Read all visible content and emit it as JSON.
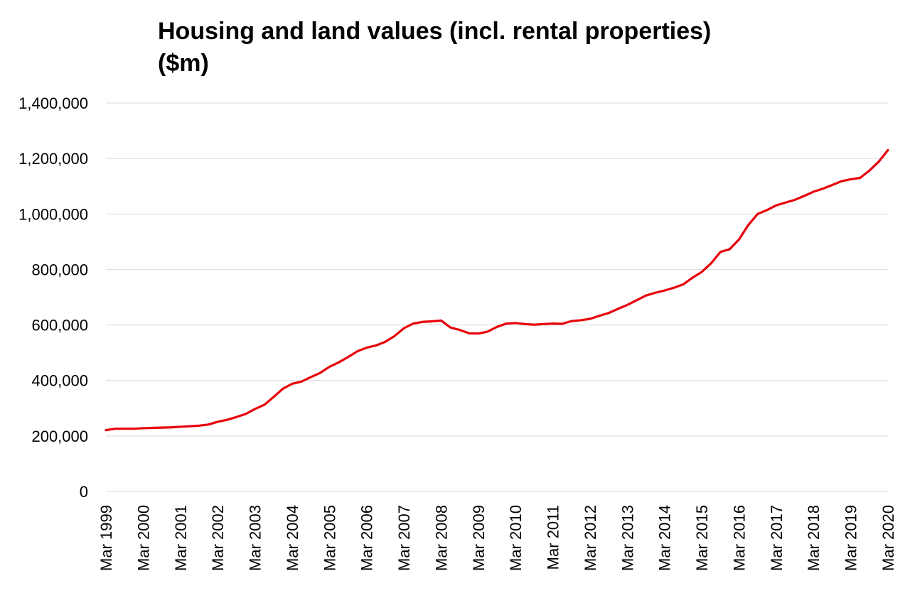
{
  "chart_data": {
    "type": "line",
    "title_line1": "Housing and land values (incl. rental properties)",
    "title_line2": "($m)",
    "ylim": [
      0,
      1400000
    ],
    "y_ticks": [
      0,
      200000,
      400000,
      600000,
      800000,
      1000000,
      1200000,
      1400000
    ],
    "y_tick_labels": [
      "0",
      "200,000",
      "400,000",
      "600,000",
      "800,000",
      "1,000,000",
      "1,200,000",
      "1,400,000"
    ],
    "x_tick_labels": [
      "Mar 1999",
      "Mar 2000",
      "Mar 2001",
      "Mar 2002",
      "Mar 2003",
      "Mar 2004",
      "Mar 2005",
      "Mar 2006",
      "Mar 2007",
      "Mar 2008",
      "Mar 2009",
      "Mar 2010",
      "Mar 2011",
      "Mar 2012",
      "Mar 2013",
      "Mar 2014",
      "Mar 2015",
      "Mar 2016",
      "Mar 2017",
      "Mar 2018",
      "Mar 2019",
      "Mar 2020"
    ],
    "grid": true,
    "legend": "none",
    "line_color": "#E8000B",
    "series": [
      {
        "values": [
          221000,
          226000,
          226000,
          226000,
          228000,
          229000,
          230000,
          231000,
          233000,
          235000,
          237000,
          241000,
          251000,
          258000,
          268000,
          279000,
          297000,
          312000,
          340000,
          370000,
          388000,
          396000,
          412000,
          427000,
          449000,
          465000,
          484000,
          505000,
          518000,
          526000,
          539000,
          560000,
          588000,
          605000,
          611000,
          613000,
          616000,
          591000,
          582000,
          570000,
          569000,
          576000,
          593000,
          605000,
          607000,
          603000,
          601000,
          603000,
          605000,
          604000,
          614000,
          617000,
          622000,
          633000,
          643000,
          658000,
          672000,
          689000,
          706000,
          716000,
          724000,
          734000,
          746000,
          770000,
          791000,
          822000,
          863000,
          873000,
          908000,
          960000,
          1000000,
          1014000,
          1031000,
          1041000,
          1051000,
          1065000,
          1080000,
          1091000,
          1104000,
          1118000,
          1125000,
          1130000,
          1156000,
          1188000,
          1230000
        ]
      }
    ]
  }
}
